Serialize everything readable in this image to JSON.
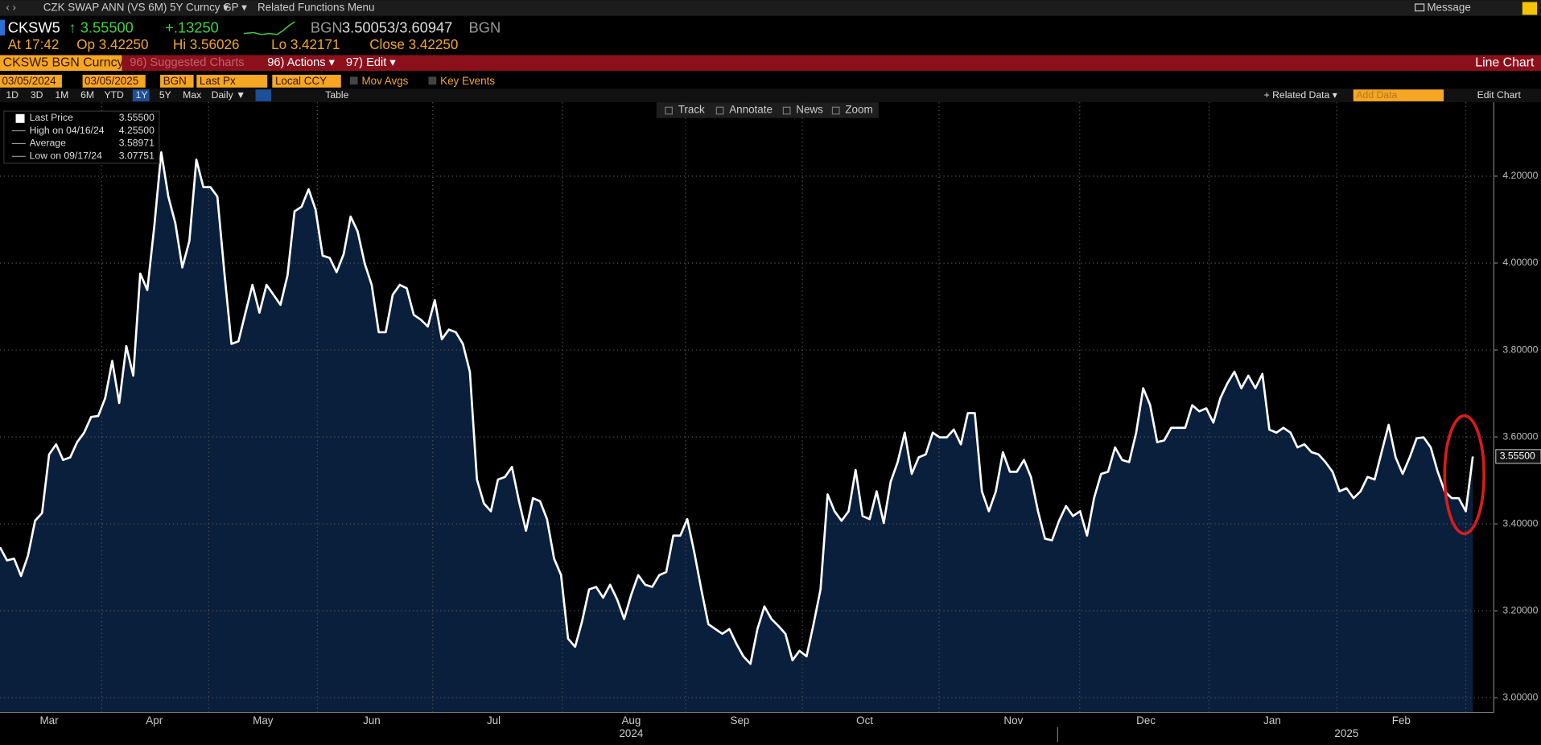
{
  "ui": {
    "security": "CZK SWAP ANN (VS 6M) 5Y Curncy ▾",
    "gp": "GP ▾",
    "related": "Related Functions Menu",
    "message": "Message",
    "ticker": "CKSW5",
    "last": "↑ 3.55500",
    "change": "+.13250",
    "bgn1": "BGN",
    "bidask": "3.50053/3.60947",
    "bgn2": "BGN",
    "at": "At 17:42",
    "open": "Op 3.42250",
    "high": "Hi 3.56026",
    "low": "Lo 3.42171",
    "close": "Close 3.42250",
    "tab": "CKSW5 BGN Curncy",
    "suggested": "96) Suggested Charts",
    "actions": "96) Actions ▾",
    "edit": "97) Edit ▾",
    "chart_kind": "Line Chart",
    "start": "03/05/2024",
    "end": "03/05/2025",
    "source": "BGN",
    "field": "Last Px",
    "currency": "Local CCY",
    "mov_avgs": "Mov Avgs",
    "key_events": "Key Events",
    "periods": [
      "1D",
      "3D",
      "1M",
      "6M",
      "YTD",
      "1Y",
      "5Y",
      "Max"
    ],
    "frequency": "Daily ▼",
    "table": "Table",
    "related_data": "+ Related Data ▾",
    "add_data": "Add Data",
    "edit_chart": "Edit Chart",
    "tools": [
      "Track",
      "Annotate",
      "News",
      "Zoom"
    ]
  },
  "legend": [
    {
      "label": "Last Price",
      "value": "3.55500"
    },
    {
      "label": "High on 04/16/24",
      "value": "4.25500"
    },
    {
      "label": "Average",
      "value": "3.58971"
    },
    {
      "label": "Low on 09/17/24",
      "value": "3.07751"
    }
  ],
  "chart_data": {
    "type": "area",
    "color": "#ffffff",
    "fill": "#0a1f3b",
    "values": [
      3.346,
      3.316,
      3.32,
      3.28,
      3.327,
      3.407,
      3.425,
      3.56,
      3.583,
      3.547,
      3.553,
      3.588,
      3.61,
      3.646,
      3.648,
      3.689,
      3.775,
      3.678,
      3.809,
      3.741,
      3.976,
      3.938,
      4.085,
      4.255,
      4.153,
      4.092,
      3.99,
      4.051,
      4.238,
      4.175,
      4.175,
      4.153,
      3.976,
      3.814,
      3.82,
      3.886,
      3.95,
      3.886,
      3.95,
      3.927,
      3.904,
      3.972,
      4.119,
      4.13,
      4.17,
      4.123,
      4.017,
      4.012,
      3.979,
      4.021,
      4.107,
      4.073,
      3.999,
      3.95,
      3.841,
      3.841,
      3.927,
      3.95,
      3.942,
      3.881,
      3.87,
      3.854,
      3.915,
      3.825,
      3.847,
      3.841,
      3.814,
      3.75,
      3.502,
      3.447,
      3.429,
      3.502,
      3.508,
      3.531,
      3.452,
      3.384,
      3.459,
      3.452,
      3.411,
      3.32,
      3.282,
      3.136,
      3.117,
      3.176,
      3.249,
      3.255,
      3.23,
      3.26,
      3.226,
      3.181,
      3.237,
      3.282,
      3.26,
      3.255,
      3.282,
      3.289,
      3.373,
      3.373,
      3.411,
      3.334,
      3.249,
      3.169,
      3.158,
      3.147,
      3.158,
      3.124,
      3.095,
      3.078,
      3.158,
      3.21,
      3.181,
      3.165,
      3.147,
      3.086,
      3.108,
      3.095,
      3.169,
      3.249,
      3.468,
      3.429,
      3.407,
      3.429,
      3.524,
      3.418,
      3.411,
      3.475,
      3.402,
      3.497,
      3.542,
      3.61,
      3.515,
      3.553,
      3.56,
      3.61,
      3.599,
      3.599,
      3.617,
      3.583,
      3.655,
      3.655,
      3.475,
      3.429,
      3.475,
      3.565,
      3.52,
      3.52,
      3.547,
      3.508,
      3.429,
      3.366,
      3.362,
      3.407,
      3.441,
      3.418,
      3.429,
      3.373,
      3.459,
      3.515,
      3.52,
      3.576,
      3.547,
      3.542,
      3.61,
      3.712,
      3.673,
      3.588,
      3.592,
      3.621,
      3.621,
      3.621,
      3.673,
      3.659,
      3.666,
      3.633,
      3.689,
      3.723,
      3.75,
      3.712,
      3.741,
      3.712,
      3.745,
      3.617,
      3.61,
      3.621,
      3.61,
      3.576,
      3.583,
      3.565,
      3.56,
      3.542,
      3.52,
      3.475,
      3.482,
      3.459,
      3.475,
      3.508,
      3.502,
      3.565,
      3.628,
      3.553,
      3.515,
      3.553,
      3.597,
      3.599,
      3.576,
      3.52,
      3.475,
      3.459,
      3.459,
      3.429,
      3.555
    ],
    "xlim": [
      0,
      213
    ],
    "xticks": [
      {
        "value": 7,
        "label": "Mar"
      },
      {
        "value": 22,
        "label": "Apr"
      },
      {
        "value": 37.5,
        "label": "May"
      },
      {
        "value": 53,
        "label": "Jun"
      },
      {
        "value": 70.4,
        "label": "Jul"
      },
      {
        "value": 90,
        "label": "Aug"
      },
      {
        "value": 105.5,
        "label": "Sep"
      },
      {
        "value": 123.3,
        "label": "Oct"
      },
      {
        "value": 144.5,
        "label": "Nov"
      },
      {
        "value": 163.4,
        "label": "Dec"
      },
      {
        "value": 181.4,
        "label": "Jan"
      },
      {
        "value": 199.8,
        "label": "Feb"
      }
    ],
    "years": [
      {
        "value": 90,
        "label": "2024"
      },
      {
        "value": 192,
        "label": "2025"
      }
    ],
    "ylim": [
      2.966,
      4.37
    ],
    "yticks": [
      {
        "value": 3,
        "label": "3.00000"
      },
      {
        "value": 3.2,
        "label": "3.20000"
      },
      {
        "value": 3.4,
        "label": "3.40000"
      },
      {
        "value": 3.6,
        "label": "3.60000"
      },
      {
        "value": 3.8,
        "label": "3.80000"
      },
      {
        "value": 4,
        "label": "4.00000"
      },
      {
        "value": 4.2,
        "label": "4.20000"
      }
    ],
    "grid": true
  }
}
